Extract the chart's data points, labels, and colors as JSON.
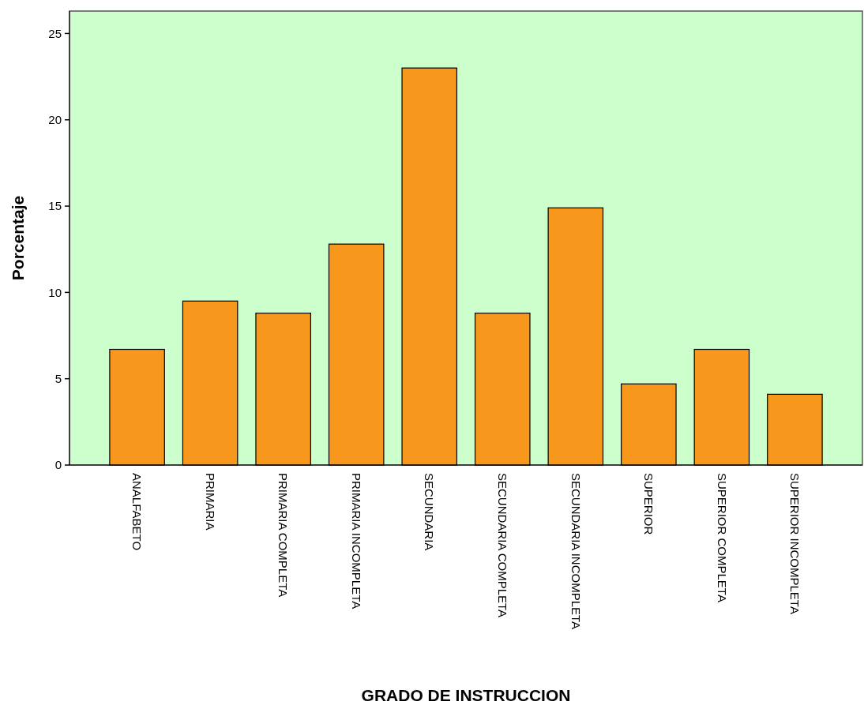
{
  "chart_data": {
    "type": "bar",
    "xlabel": "GRADO DE INSTRUCCION",
    "ylabel": "Porcentaje",
    "categories": [
      "ANALFABETO",
      "PRIMARIA",
      "PRIMARIA COMPLETA",
      "PRIMARIA INCOMPLETA",
      "SECUNDARIA",
      "SECUNDARIA COMPLETA",
      "SECUNDARIA INCOMPLETA",
      "SUPERIOR",
      "SUPERIOR COMPLETA",
      "SUPERIOR INCOMPLETA"
    ],
    "values": [
      6.7,
      9.5,
      8.8,
      12.8,
      23.0,
      8.8,
      14.9,
      4.7,
      6.7,
      4.1
    ],
    "color": "#f7981d",
    "ylim": [
      0,
      26.3
    ],
    "yticks": [
      0,
      5,
      10,
      15,
      20,
      25
    ],
    "grid": false
  }
}
